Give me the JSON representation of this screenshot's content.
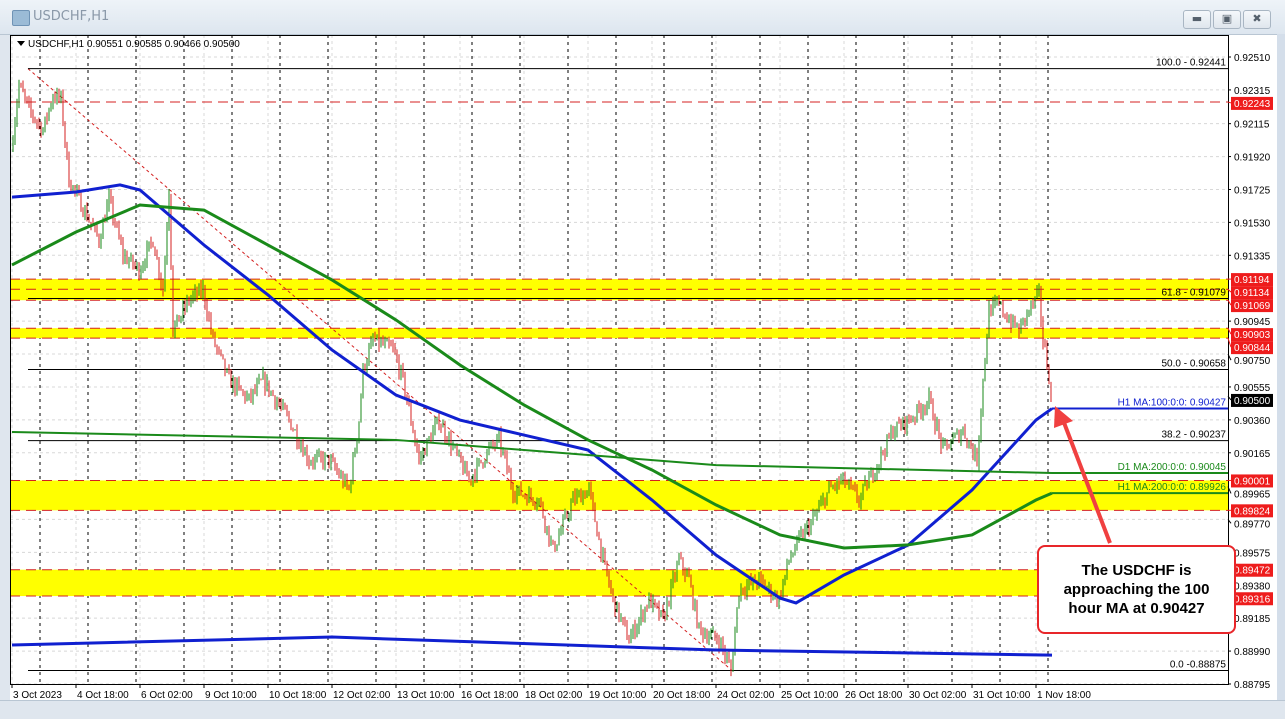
{
  "window": {
    "title": "USDCHF,H1",
    "buttons": [
      "minimize",
      "maximize",
      "close"
    ]
  },
  "colors": {
    "bull_candle": "#1a8a1a",
    "bear_candle": "#d42020",
    "zone_fill": "#ffff00",
    "level_line": "#d42020",
    "h1_ma100": "#1020d0",
    "h1_ma200": "#1a8a1a",
    "d1_ma200": "#1a8a1a",
    "d1_ma100": "#1020d0",
    "current_price_box": "#000000",
    "level_label_box": "#ee1c1c"
  },
  "chart_data": {
    "type": "candlestick",
    "symbol": "USDCHF",
    "timeframe": "H1",
    "ohlc_header": "USDCHF,H1  0.90551 0.90585 0.90466 0.90500",
    "last_bar": {
      "open": 0.90551,
      "high": 0.90585,
      "low": 0.90466,
      "close": 0.905
    },
    "ylim": [
      0.887,
      0.926
    ],
    "y_ticks": [
      "0.92510",
      "0.92315",
      "0.92115",
      "0.91920",
      "0.91725",
      "0.91530",
      "0.91335",
      "0.90945",
      "0.90750",
      "0.90555",
      "0.90360",
      "0.90165",
      "0.89965",
      "0.89770",
      "0.89575",
      "0.89380",
      "0.89185",
      "0.88990",
      "0.88795"
    ],
    "x_ticks": [
      "3 Oct 2023",
      "4 Oct 18:00",
      "6 Oct 02:00",
      "9 Oct 10:00",
      "10 Oct 18:00",
      "12 Oct 02:00",
      "13 Oct 10:00",
      "16 Oct 18:00",
      "18 Oct 02:00",
      "19 Oct 10:00",
      "20 Oct 18:00",
      "24 Oct 02:00",
      "25 Oct 10:00",
      "26 Oct 18:00",
      "30 Oct 02:00",
      "31 Oct 10:00",
      "1 Nov 18:00"
    ],
    "x_tick_times": [
      "3 Oct 10:00",
      "4 Oct 18:00",
      "6 Oct 02:00",
      "9 Oct 10:00",
      "10 Oct 18:00",
      "12 Oct 02:00",
      "13 Oct 10:00",
      "16 Oct 18:00",
      "18 Oct 02:00",
      "19 Oct 10:00",
      "20 Oct 18:00",
      "24 Oct 02:00",
      "25 Oct 10:00",
      "26 Oct 18:00",
      "30 Oct 02:00",
      "31 Oct 10:00",
      "1 Nov 18:00"
    ],
    "grid": true,
    "price_path": [
      [
        "3 Oct 10:00",
        0.91959
      ],
      [
        "3 Oct 14:00",
        0.92344
      ],
      [
        "3 Oct 19:00",
        0.92196
      ],
      [
        "4 Oct 02:00",
        0.92077
      ],
      [
        "4 Oct 07:00",
        0.92285
      ],
      [
        "4 Oct 11:00",
        0.92255
      ],
      [
        "4 Oct 15:00",
        0.91781
      ],
      [
        "4 Oct 20:00",
        0.91663
      ],
      [
        "5 Oct 06:00",
        0.91426
      ],
      [
        "5 Oct 11:00",
        0.91663
      ],
      [
        "5 Oct 18:00",
        0.91337
      ],
      [
        "6 Oct 02:00",
        0.91248
      ],
      [
        "6 Oct 09:00",
        0.91426
      ],
      [
        "6 Oct 14:00",
        0.91129
      ],
      [
        "6 Oct 17:00",
        0.91722
      ],
      [
        "6 Oct 19:00",
        0.90892
      ],
      [
        "9 Oct 03:00",
        0.9107
      ],
      [
        "9 Oct 10:00",
        0.91129
      ],
      [
        "9 Oct 15:00",
        0.90833
      ],
      [
        "9 Oct 23:00",
        0.90596
      ],
      [
        "10 Oct 09:00",
        0.90478
      ],
      [
        "10 Oct 16:00",
        0.90596
      ],
      [
        "11 Oct 05:00",
        0.90359
      ],
      [
        "11 Oct 15:00",
        0.90122
      ],
      [
        "12 Oct 01:00",
        0.90122
      ],
      [
        "12 Oct 11:00",
        0.89944
      ],
      [
        "12 Oct 16:00",
        0.90359
      ],
      [
        "12 Oct 18:00",
        0.90655
      ],
      [
        "12 Oct 23:00",
        0.90833
      ],
      [
        "13 Oct 09:00",
        0.90774
      ],
      [
        "13 Oct 14:00",
        0.90596
      ],
      [
        "13 Oct 22:00",
        0.90122
      ],
      [
        "16 Oct 08:00",
        0.90359
      ],
      [
        "16 Oct 18:00",
        0.90122
      ],
      [
        "16 Oct 23:00",
        0.90004
      ],
      [
        "17 Oct 09:00",
        0.90181
      ],
      [
        "17 Oct 14:00",
        0.90241
      ],
      [
        "17 Oct 21:00",
        0.89944
      ],
      [
        "18 Oct 10:00",
        0.89885
      ],
      [
        "18 Oct 17:00",
        0.89589
      ],
      [
        "19 Oct 03:00",
        0.89885
      ],
      [
        "19 Oct 11:00",
        0.89944
      ],
      [
        "19 Oct 18:00",
        0.8953
      ],
      [
        "19 Oct 23:00",
        0.89293
      ],
      [
        "20 Oct 07:00",
        0.89056
      ],
      [
        "20 Oct 17:00",
        0.89293
      ],
      [
        "23 Oct 00:00",
        0.89174
      ],
      [
        "23 Oct 08:00",
        0.8953
      ],
      [
        "23 Oct 13:00",
        0.89412
      ],
      [
        "23 Oct 18:00",
        0.89115
      ],
      [
        "24 Oct 04:00",
        0.89056
      ],
      [
        "24 Oct 10:00",
        0.88876
      ],
      [
        "24 Oct 14:00",
        0.89352
      ],
      [
        "25 Oct 00:00",
        0.89411
      ],
      [
        "25 Oct 10:00",
        0.89293
      ],
      [
        "25 Oct 15:00",
        0.8953
      ],
      [
        "25 Oct 20:00",
        0.89648
      ],
      [
        "26 Oct 03:00",
        0.89767
      ],
      [
        "26 Oct 11:00",
        0.89944
      ],
      [
        "26 Oct 18:00",
        0.90004
      ],
      [
        "27 Oct 02:00",
        0.89885
      ],
      [
        "27 Oct 12:00",
        0.90122
      ],
      [
        "27 Oct 19:00",
        0.903
      ],
      [
        "30 Oct 03:00",
        0.90359
      ],
      [
        "30 Oct 13:00",
        0.90478
      ],
      [
        "30 Oct 20:00",
        0.90181
      ],
      [
        "31 Oct 06:00",
        0.903
      ],
      [
        "31 Oct 13:00",
        0.90122
      ],
      [
        "31 Oct 16:00",
        0.90596
      ],
      [
        "31 Oct 19:00",
        0.91011
      ],
      [
        "1 Nov 00:00",
        0.91041
      ],
      [
        "1 Nov 05:00",
        0.90952
      ],
      [
        "1 Nov 10:00",
        0.90892
      ],
      [
        "1 Nov 15:00",
        0.91011
      ],
      [
        "1 Nov 20:00",
        0.911
      ],
      [
        "1 Nov 22:00",
        0.90833
      ],
      [
        "2 Nov 01:00",
        0.90626
      ],
      [
        "2 Nov 02:00",
        0.905
      ]
    ],
    "moving_averages": [
      {
        "name": "H1 MA:100:0:0: 0.90427",
        "color": "#1020d0",
        "points": [
          [
            "3 Oct 10:00",
            0.9168
          ],
          [
            "4 Oct 18:00",
            0.9171
          ],
          [
            "5 Oct 16:00",
            0.91752
          ],
          [
            "6 Oct 02:00",
            0.91722
          ],
          [
            "9 Oct 10:00",
            0.91396
          ],
          [
            "10 Oct 18:00",
            0.911
          ],
          [
            "12 Oct 02:00",
            0.90774
          ],
          [
            "13 Oct 10:00",
            0.90507
          ],
          [
            "16 Oct 18:00",
            0.90359
          ],
          [
            "18 Oct 02:00",
            0.9027
          ],
          [
            "19 Oct 10:00",
            0.90181
          ],
          [
            "20 Oct 18:00",
            0.89885
          ],
          [
            "24 Oct 02:00",
            0.89559
          ],
          [
            "25 Oct 10:00",
            0.89304
          ],
          [
            "25 Oct 18:00",
            0.89275
          ],
          [
            "26 Oct 18:00",
            0.89441
          ],
          [
            "30 Oct 02:00",
            0.89618
          ],
          [
            "31 Oct 10:00",
            0.89944
          ],
          [
            "1 Nov 18:00",
            0.90359
          ],
          [
            "2 Nov 02:00",
            0.90427
          ]
        ]
      },
      {
        "name": "H1 MA:200:0:0: 0.89926",
        "color": "#1a8a1a",
        "points": [
          [
            "3 Oct 10:00",
            0.91278
          ],
          [
            "4 Oct 18:00",
            0.91473
          ],
          [
            "6 Oct 02:00",
            0.91633
          ],
          [
            "9 Oct 10:00",
            0.91603
          ],
          [
            "10 Oct 18:00",
            0.91396
          ],
          [
            "12 Oct 02:00",
            0.91189
          ],
          [
            "13 Oct 10:00",
            0.90952
          ],
          [
            "16 Oct 18:00",
            0.90685
          ],
          [
            "18 Oct 02:00",
            0.90448
          ],
          [
            "19 Oct 10:00",
            0.90241
          ],
          [
            "20 Oct 18:00",
            0.90063
          ],
          [
            "24 Oct 02:00",
            0.89856
          ],
          [
            "25 Oct 10:00",
            0.89678
          ],
          [
            "26 Oct 18:00",
            0.89601
          ],
          [
            "30 Oct 02:00",
            0.89619
          ],
          [
            "31 Oct 10:00",
            0.89678
          ],
          [
            "1 Nov 18:00",
            0.89885
          ],
          [
            "2 Nov 02:00",
            0.89926
          ]
        ]
      },
      {
        "name": "D1 MA:200:0:0: 0.90045",
        "color": "#1a8a1a",
        "points": [
          [
            "3 Oct 10:00",
            0.90288
          ],
          [
            "13 Oct 10:00",
            0.90241
          ],
          [
            "24 Oct 02:00",
            0.90092
          ],
          [
            "2 Nov 02:00",
            0.90045
          ]
        ]
      },
      {
        "name": "",
        "color": "#1020d0",
        "points": [
          [
            "3 Oct 10:00",
            0.89026
          ],
          [
            "12 Oct 02:00",
            0.89073
          ],
          [
            "24 Oct 02:00",
            0.88996
          ],
          [
            "2 Nov 02:00",
            0.88966
          ]
        ]
      }
    ],
    "fibonacci": {
      "from": [
        "3 Oct 18:00",
        0.92441
      ],
      "to": [
        "24 Oct 10:00",
        0.88875
      ],
      "levels": [
        {
          "label": "100.0 - 0.92441",
          "price": 0.92441
        },
        {
          "label": "61.8 - 0.91079",
          "price": 0.91079
        },
        {
          "label": "50.0 - 0.90658",
          "price": 0.90658
        },
        {
          "label": "38.2 - 0.90237",
          "price": 0.90237
        },
        {
          "label": "0.0 -0.88875",
          "price": 0.88875
        }
      ]
    },
    "zones": [
      [
        0.91194,
        0.91069
      ],
      [
        0.90903,
        0.90844
      ],
      [
        0.90001,
        0.89824
      ],
      [
        0.89472,
        0.89316
      ]
    ],
    "levels": [
      "0.92243",
      "0.91194",
      "0.91134",
      "0.91069",
      "0.90903",
      "0.90844",
      "0.90001",
      "0.89824",
      "0.89472",
      "0.89316"
    ],
    "current_price": "0.90500",
    "annotation": "The USDCHF is approaching the 100 hour MA at 0.90427"
  }
}
